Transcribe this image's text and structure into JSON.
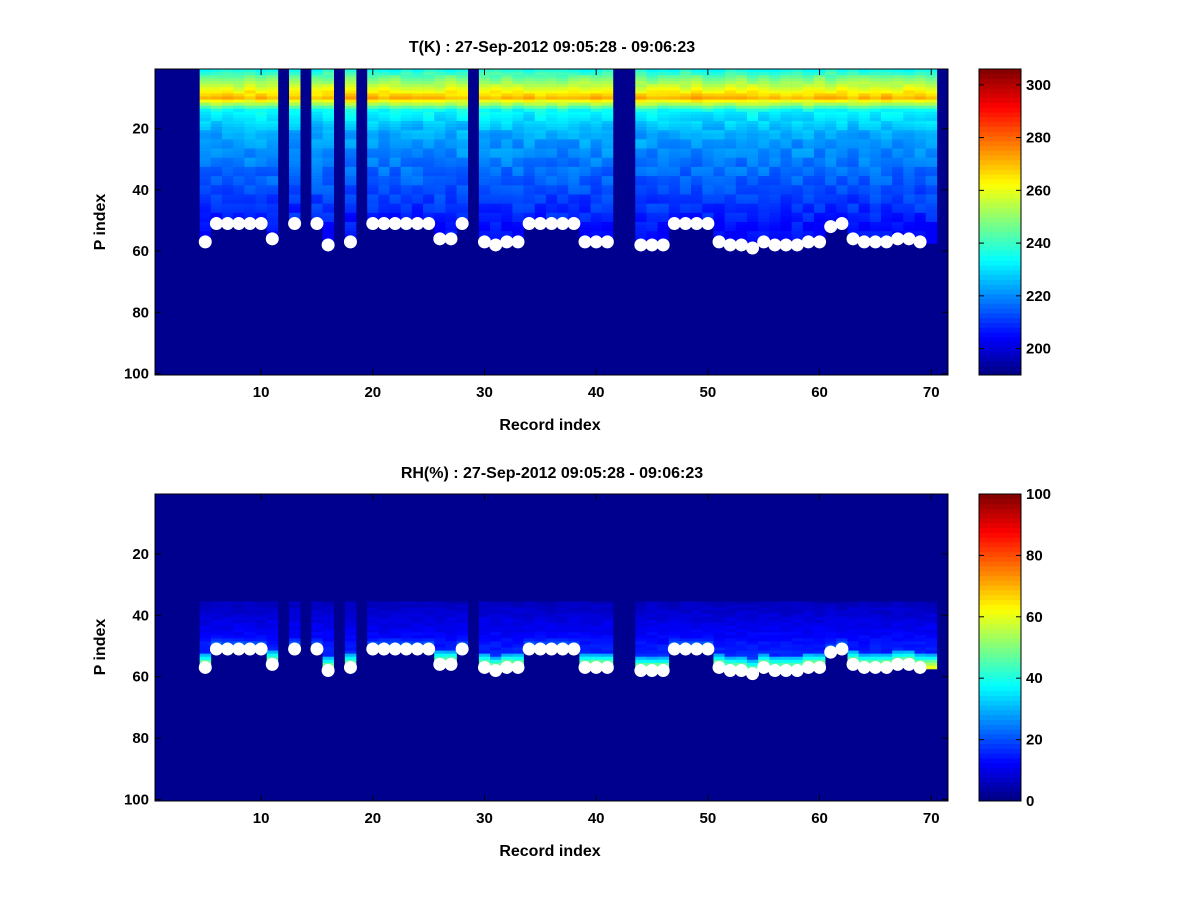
{
  "chart_data": [
    {
      "type": "heatmap",
      "title": "T(K) : 27-Sep-2012 09:05:28 - 09:06:23",
      "xlabel": "Record index",
      "ylabel": "P index",
      "xlim": [
        0.5,
        71.5
      ],
      "ylim": [
        100.5,
        0.5
      ],
      "xticks": [
        10,
        20,
        30,
        40,
        50,
        60,
        70
      ],
      "xtick_labels": [
        "10",
        "20",
        "30",
        "40",
        "50",
        "60",
        "70"
      ],
      "yticks": [
        20,
        40,
        60,
        80,
        100
      ],
      "ytick_labels": [
        "20",
        "40",
        "60",
        "80",
        "100"
      ],
      "colorbar": {
        "colormap": "jet",
        "range": [
          190,
          306
        ],
        "ticks": [
          200,
          220,
          240,
          260,
          280,
          300
        ],
        "tick_labels": [
          "200",
          "220",
          "240",
          "260",
          "280",
          "300"
        ]
      },
      "empty_records": [
        1,
        2,
        3,
        4,
        12,
        14,
        17,
        19,
        29,
        42,
        43,
        71
      ],
      "field_description": "temperature peaks (~272 K) near P index 10, cools with depth to ~215 K near P index 40-50, fill value below the surface marker",
      "surface_markers": {
        "x": [
          5,
          6,
          7,
          8,
          9,
          10,
          11,
          13,
          15,
          16,
          18,
          20,
          21,
          22,
          23,
          24,
          25,
          26,
          27,
          28,
          30,
          31,
          32,
          33,
          34,
          35,
          36,
          37,
          38,
          39,
          40,
          41,
          44,
          45,
          46,
          47,
          48,
          49,
          50,
          51,
          52,
          53,
          54,
          55,
          56,
          57,
          58,
          59,
          60,
          61,
          62,
          63,
          64,
          65,
          66,
          67,
          68,
          69
        ],
        "y": [
          57,
          51,
          51,
          51,
          51,
          51,
          56,
          51,
          51,
          58,
          57,
          51,
          51,
          51,
          51,
          51,
          51,
          56,
          56,
          51,
          57,
          58,
          57,
          57,
          51,
          51,
          51,
          51,
          51,
          57,
          57,
          57,
          58,
          58,
          58,
          51,
          51,
          51,
          51,
          57,
          58,
          58,
          59,
          57,
          58,
          58,
          58,
          57,
          57,
          52,
          51,
          56,
          57,
          57,
          57,
          56,
          56,
          57
        ]
      }
    },
    {
      "type": "heatmap",
      "title": "RH(%) : 27-Sep-2012 09:05:28 - 09:06:23",
      "xlabel": "Record index",
      "ylabel": "P index",
      "xlim": [
        0.5,
        71.5
      ],
      "ylim": [
        100.5,
        0.5
      ],
      "xticks": [
        10,
        20,
        30,
        40,
        50,
        60,
        70
      ],
      "xtick_labels": [
        "10",
        "20",
        "30",
        "40",
        "50",
        "60",
        "70"
      ],
      "yticks": [
        20,
        40,
        60,
        80,
        100
      ],
      "ytick_labels": [
        "20",
        "40",
        "60",
        "80",
        "100"
      ],
      "colorbar": {
        "colormap": "jet",
        "range": [
          0,
          100
        ],
        "ticks": [
          0,
          20,
          40,
          60,
          80,
          100
        ],
        "tick_labels": [
          "0",
          "20",
          "40",
          "60",
          "80",
          "100"
        ]
      },
      "empty_records": [
        1,
        2,
        3,
        4,
        12,
        14,
        17,
        19,
        29,
        42,
        43,
        71
      ],
      "field_description": "near-zero humidity aloft, rising toward the surface marker (peaks ~55-60% at P index 52-57 for records 50-69)",
      "surface_markers": {
        "x": [
          5,
          6,
          7,
          8,
          9,
          10,
          11,
          13,
          15,
          16,
          18,
          20,
          21,
          22,
          23,
          24,
          25,
          26,
          27,
          28,
          30,
          31,
          32,
          33,
          34,
          35,
          36,
          37,
          38,
          39,
          40,
          41,
          44,
          45,
          46,
          47,
          48,
          49,
          50,
          51,
          52,
          53,
          54,
          55,
          56,
          57,
          58,
          59,
          60,
          61,
          62,
          63,
          64,
          65,
          66,
          67,
          68,
          69
        ],
        "y": [
          57,
          51,
          51,
          51,
          51,
          51,
          56,
          51,
          51,
          58,
          57,
          51,
          51,
          51,
          51,
          51,
          51,
          56,
          56,
          51,
          57,
          58,
          57,
          57,
          51,
          51,
          51,
          51,
          51,
          57,
          57,
          57,
          58,
          58,
          58,
          51,
          51,
          51,
          51,
          57,
          58,
          58,
          59,
          57,
          58,
          58,
          58,
          57,
          57,
          52,
          51,
          56,
          57,
          57,
          57,
          56,
          56,
          57
        ]
      }
    }
  ]
}
